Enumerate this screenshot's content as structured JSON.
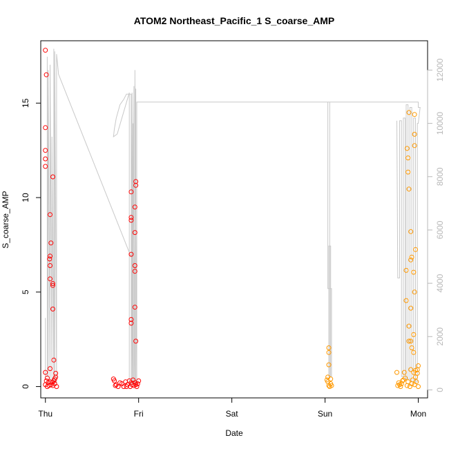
{
  "chart_data": {
    "type": "scatter",
    "title": "ATOM2 Northeast_Pacific_1 S_coarse_AMP",
    "xlabel": "Date",
    "ylabel": "S_coarse_AMP",
    "x_ticks": [
      "Thu",
      "Fri",
      "Sat",
      "Sun",
      "Mon"
    ],
    "x_range": [
      -0.05,
      4.1
    ],
    "y_left": {
      "ticks": [
        0,
        5,
        10,
        15
      ],
      "range": [
        -0.6,
        18.3
      ]
    },
    "y_right": {
      "ticks": [
        0,
        2000,
        4000,
        6000,
        8000,
        10000,
        12000
      ],
      "range": [
        -300,
        13100
      ],
      "color": "#b8b8b8"
    },
    "grid": false,
    "legend": "none",
    "colors": {
      "red": "#ff0000",
      "orange": "#ff9900",
      "line": "#c8c8c8"
    },
    "series": [
      {
        "color": "red",
        "points": [
          [
            0.0,
            17.8
          ],
          [
            0.01,
            16.5
          ],
          [
            0.0,
            13.7
          ],
          [
            0.0,
            12.5
          ],
          [
            0.0,
            12.05
          ],
          [
            0.0,
            11.65
          ],
          [
            0.08,
            11.1
          ],
          [
            0.05,
            9.1
          ],
          [
            0.06,
            7.6
          ],
          [
            0.05,
            6.9
          ],
          [
            0.045,
            6.75
          ],
          [
            0.05,
            6.4
          ],
          [
            0.05,
            5.7
          ],
          [
            0.08,
            5.45
          ],
          [
            0.08,
            5.35
          ],
          [
            0.08,
            4.1
          ],
          [
            0.09,
            1.4
          ],
          [
            0.05,
            0.95
          ],
          [
            0.0,
            0.75
          ],
          [
            0.11,
            0.7
          ],
          [
            0.11,
            0.5
          ],
          [
            0.02,
            0.45
          ],
          [
            0.05,
            0.25
          ],
          [
            0.06,
            0.1
          ],
          [
            0.0,
            0.1
          ],
          [
            0.02,
            0.0
          ],
          [
            0.04,
            0.05
          ],
          [
            0.07,
            0.2
          ],
          [
            0.09,
            0.3
          ],
          [
            0.1,
            0.15
          ],
          [
            0.12,
            0.0
          ],
          [
            0.03,
            0.2
          ],
          [
            0.08,
            0.05
          ],
          [
            0.01,
            0.3
          ],
          [
            0.1,
            0.4
          ],
          [
            0.97,
            10.85
          ],
          [
            0.97,
            10.65
          ],
          [
            0.92,
            10.3
          ],
          [
            0.96,
            9.5
          ],
          [
            0.92,
            8.95
          ],
          [
            0.92,
            8.8
          ],
          [
            0.96,
            8.15
          ],
          [
            0.92,
            7.0
          ],
          [
            0.96,
            6.4
          ],
          [
            0.96,
            6.1
          ],
          [
            0.96,
            4.2
          ],
          [
            0.92,
            3.55
          ],
          [
            0.92,
            3.35
          ],
          [
            0.97,
            2.4
          ],
          [
            0.73,
            0.4
          ],
          [
            0.74,
            0.3
          ],
          [
            0.76,
            0.1
          ],
          [
            0.78,
            0.0
          ],
          [
            0.8,
            0.2
          ],
          [
            0.82,
            0.15
          ],
          [
            0.84,
            0.0
          ],
          [
            0.86,
            0.25
          ],
          [
            0.88,
            0.1
          ],
          [
            0.9,
            0.3
          ],
          [
            0.91,
            0.0
          ],
          [
            0.93,
            0.1
          ],
          [
            0.94,
            0.35
          ],
          [
            0.95,
            0.05
          ],
          [
            0.96,
            0.2
          ],
          [
            0.98,
            0.0
          ],
          [
            0.99,
            0.15
          ],
          [
            1.0,
            0.3
          ],
          [
            0.75,
            0.05
          ],
          [
            0.87,
            0.0
          ],
          [
            0.92,
            0.2
          ],
          [
            0.97,
            0.1
          ]
        ]
      },
      {
        "color": "orange",
        "points": [
          [
            3.04,
            2.05
          ],
          [
            3.04,
            1.8
          ],
          [
            3.04,
            1.15
          ],
          [
            3.03,
            0.5
          ],
          [
            3.06,
            0.4
          ],
          [
            3.03,
            0.25
          ],
          [
            3.04,
            0.05
          ],
          [
            3.05,
            0.0
          ],
          [
            3.06,
            0.15
          ],
          [
            3.02,
            0.35
          ],
          [
            3.07,
            0.05
          ],
          [
            3.9,
            14.5
          ],
          [
            3.96,
            14.4
          ],
          [
            3.88,
            12.6
          ],
          [
            3.89,
            12.1
          ],
          [
            3.89,
            11.35
          ],
          [
            3.9,
            10.45
          ],
          [
            3.96,
            13.35
          ],
          [
            3.96,
            12.75
          ],
          [
            3.92,
            8.2
          ],
          [
            3.97,
            7.25
          ],
          [
            3.93,
            6.85
          ],
          [
            3.92,
            6.7
          ],
          [
            3.87,
            6.15
          ],
          [
            3.95,
            6.05
          ],
          [
            3.96,
            5.0
          ],
          [
            3.87,
            4.55
          ],
          [
            3.92,
            4.15
          ],
          [
            3.9,
            3.2
          ],
          [
            3.95,
            2.75
          ],
          [
            3.92,
            2.4
          ],
          [
            3.9,
            2.4
          ],
          [
            3.93,
            2.05
          ],
          [
            3.95,
            1.8
          ],
          [
            4.0,
            1.1
          ],
          [
            3.99,
            0.9
          ],
          [
            3.97,
            0.85
          ],
          [
            3.95,
            0.75
          ],
          [
            3.92,
            0.9
          ],
          [
            3.85,
            0.75
          ],
          [
            3.86,
            0.45
          ],
          [
            3.84,
            0.35
          ],
          [
            3.82,
            0.15
          ],
          [
            3.8,
            0.1
          ],
          [
            3.78,
            0.05
          ],
          [
            3.79,
            0.2
          ],
          [
            3.81,
            0.0
          ],
          [
            3.83,
            0.3
          ],
          [
            3.88,
            0.05
          ],
          [
            3.89,
            0.25
          ],
          [
            3.91,
            0.0
          ],
          [
            3.93,
            0.15
          ],
          [
            3.94,
            0.35
          ],
          [
            3.96,
            0.1
          ],
          [
            3.97,
            0.5
          ],
          [
            3.98,
            0.25
          ],
          [
            3.99,
            0.7
          ],
          [
            4.0,
            0.0
          ],
          [
            3.77,
            0.75
          ]
        ]
      }
    ],
    "right_axis_line": {
      "color": "line",
      "x": [
        0.0,
        0.0,
        0.02,
        0.02,
        0.03,
        0.03,
        0.05,
        0.05,
        0.07,
        0.07,
        0.09,
        0.09,
        0.1,
        0.1,
        0.12,
        0.12,
        0.14,
        0.14,
        0.98,
        0.98,
        0.97,
        0.97,
        0.95,
        0.95,
        0.93,
        0.93,
        0.92,
        0.92,
        0.87,
        0.84,
        0.82,
        0.8,
        0.76,
        0.74,
        0.73,
        0.77,
        0.9,
        0.9,
        0.93,
        0.93,
        0.94,
        0.94,
        0.96,
        0.96,
        0.98,
        0.98,
        1.0,
        3.05,
        3.05,
        3.04,
        3.04,
        3.06,
        3.06,
        3.07,
        3.07,
        3.03,
        3.03,
        3.05,
        4.0,
        4.0,
        4.02,
        4.0,
        3.99,
        3.99,
        3.97,
        3.97,
        3.95,
        3.95,
        3.93,
        3.93,
        3.91,
        3.91,
        3.89,
        3.89,
        3.87,
        3.87,
        3.86,
        3.86,
        3.84,
        3.84,
        3.82,
        3.82,
        3.8,
        3.8,
        3.78,
        3.77
      ],
      "y": [
        2700,
        500,
        500,
        12500,
        500,
        12000,
        300,
        12200,
        300,
        9500,
        300,
        12800,
        200,
        12700,
        200,
        12600,
        11900,
        11850,
        4450,
        200,
        200,
        11300,
        200,
        11400,
        200,
        11000,
        200,
        11100,
        11100,
        10900,
        10800,
        10700,
        10200,
        9800,
        9500,
        9600,
        11150,
        200,
        200,
        11150,
        200,
        10000,
        200,
        12000,
        200,
        10800,
        10800,
        10800,
        500,
        500,
        5400,
        5400,
        500,
        500,
        3800,
        3800,
        10800,
        10800,
        10800,
        10600,
        10600,
        10000,
        10000,
        300,
        300,
        10200,
        10200,
        300,
        300,
        10600,
        10600,
        400,
        400,
        10700,
        10700,
        400,
        400,
        10200,
        10200,
        500,
        500,
        10100,
        10100,
        4200,
        4200,
        10100
      ]
    }
  }
}
